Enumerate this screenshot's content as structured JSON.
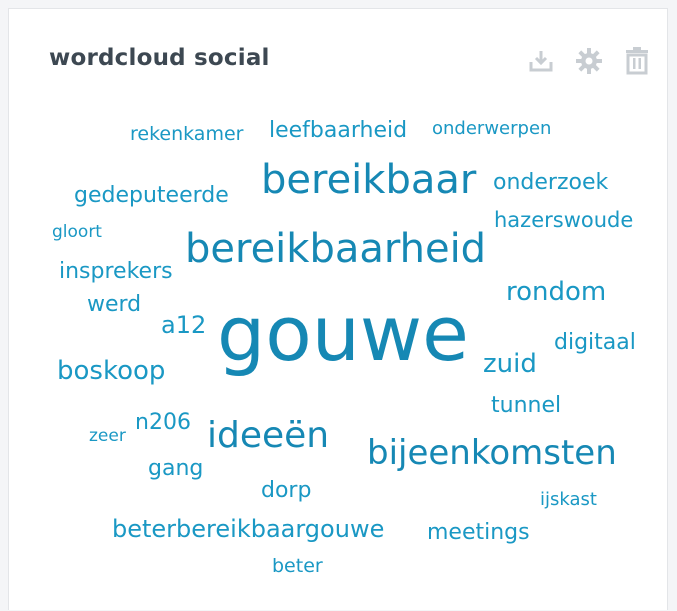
{
  "widget": {
    "title": "wordcloud social",
    "actions": {
      "download": "download-icon",
      "settings": "gear-icon",
      "delete": "trash-icon"
    }
  },
  "colors": {
    "word_primary": "#1a98c4",
    "word_dark": "#1688b4",
    "icon_gray": "#c8cdd2",
    "title": "#3d4852"
  },
  "words": [
    "rekenkamer",
    "leefbaarheid",
    "onderwerpen",
    "bereikbaar",
    "onderzoek",
    "gedeputeerde",
    "hazerswoude",
    "gloort",
    "bereikbaarheid",
    "insprekers",
    "rondom",
    "werd",
    "a12",
    "gouwe",
    "digitaal",
    "boskoop",
    "zuid",
    "tunnel",
    "zeer",
    "n206",
    "ideeën",
    "bijeenkomsten",
    "gang",
    "dorp",
    "ijskast",
    "beterbereikbaargouwe",
    "meetings",
    "beter"
  ]
}
